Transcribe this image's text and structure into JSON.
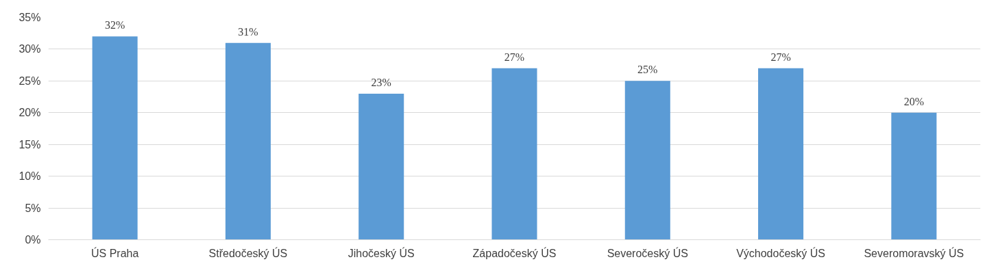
{
  "chart_data": {
    "type": "bar",
    "categories": [
      "ÚS Praha",
      "Středočeský ÚS",
      "Jihočeský ÚS",
      "Západočeský ÚS",
      "Severočeský ÚS",
      "Východočeský ÚS",
      "Severomoravský ÚS"
    ],
    "values": [
      32,
      31,
      23,
      27,
      25,
      27,
      20
    ],
    "value_labels": [
      "32%",
      "31%",
      "23%",
      "27%",
      "25%",
      "27%",
      "20%"
    ],
    "color": "#5b9bd5",
    "ylim": [
      0,
      35
    ],
    "yticks": [
      {
        "value": 0,
        "label": "0%"
      },
      {
        "value": 5,
        "label": "5%"
      },
      {
        "value": 10,
        "label": "10%"
      },
      {
        "value": 15,
        "label": "15%"
      },
      {
        "value": 20,
        "label": "20%"
      },
      {
        "value": 25,
        "label": "25%"
      },
      {
        "value": 30,
        "label": "30%"
      },
      {
        "value": 35,
        "label": "35%"
      }
    ],
    "grid": "y"
  }
}
